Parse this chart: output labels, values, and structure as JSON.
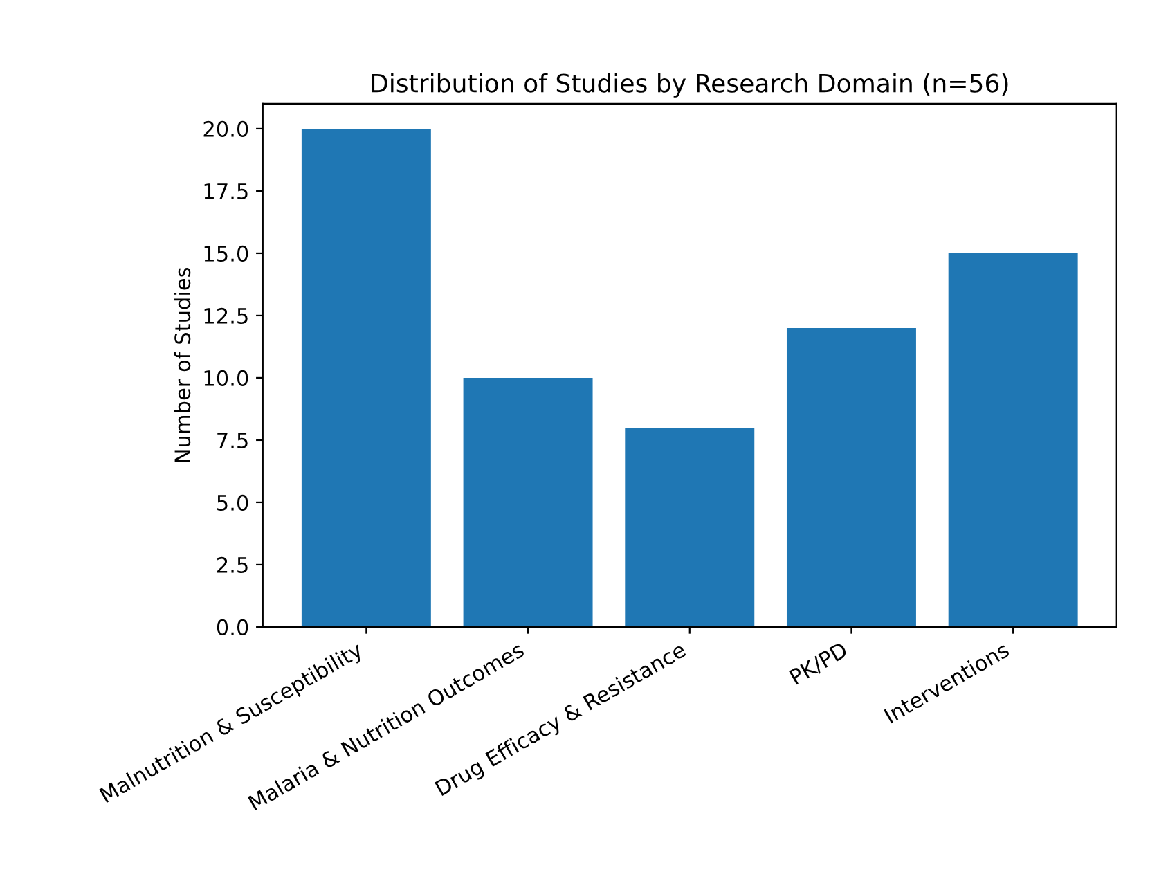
{
  "chart_data": {
    "type": "bar",
    "title": "Distribution of Studies by Research Domain (n=56)",
    "ylabel": "Number of Studies",
    "categories": [
      "Malnutrition & Susceptibility",
      "Malaria & Nutrition Outcomes",
      "Drug Efficacy & Resistance",
      "PK/PD",
      "Interventions"
    ],
    "values": [
      20,
      10,
      8,
      12,
      15
    ],
    "color": "#1f77b4",
    "ylim": [
      0,
      21
    ],
    "yticks": [
      {
        "value": 0,
        "label": "0.0"
      },
      {
        "value": 2.5,
        "label": "2.5"
      },
      {
        "value": 5,
        "label": "5.0"
      },
      {
        "value": 7.5,
        "label": "7.5"
      },
      {
        "value": 10,
        "label": "10.0"
      },
      {
        "value": 12.5,
        "label": "12.5"
      },
      {
        "value": 15,
        "label": "15.0"
      },
      {
        "value": 17.5,
        "label": "17.5"
      },
      {
        "value": 20,
        "label": "20.0"
      }
    ],
    "grid": false
  }
}
